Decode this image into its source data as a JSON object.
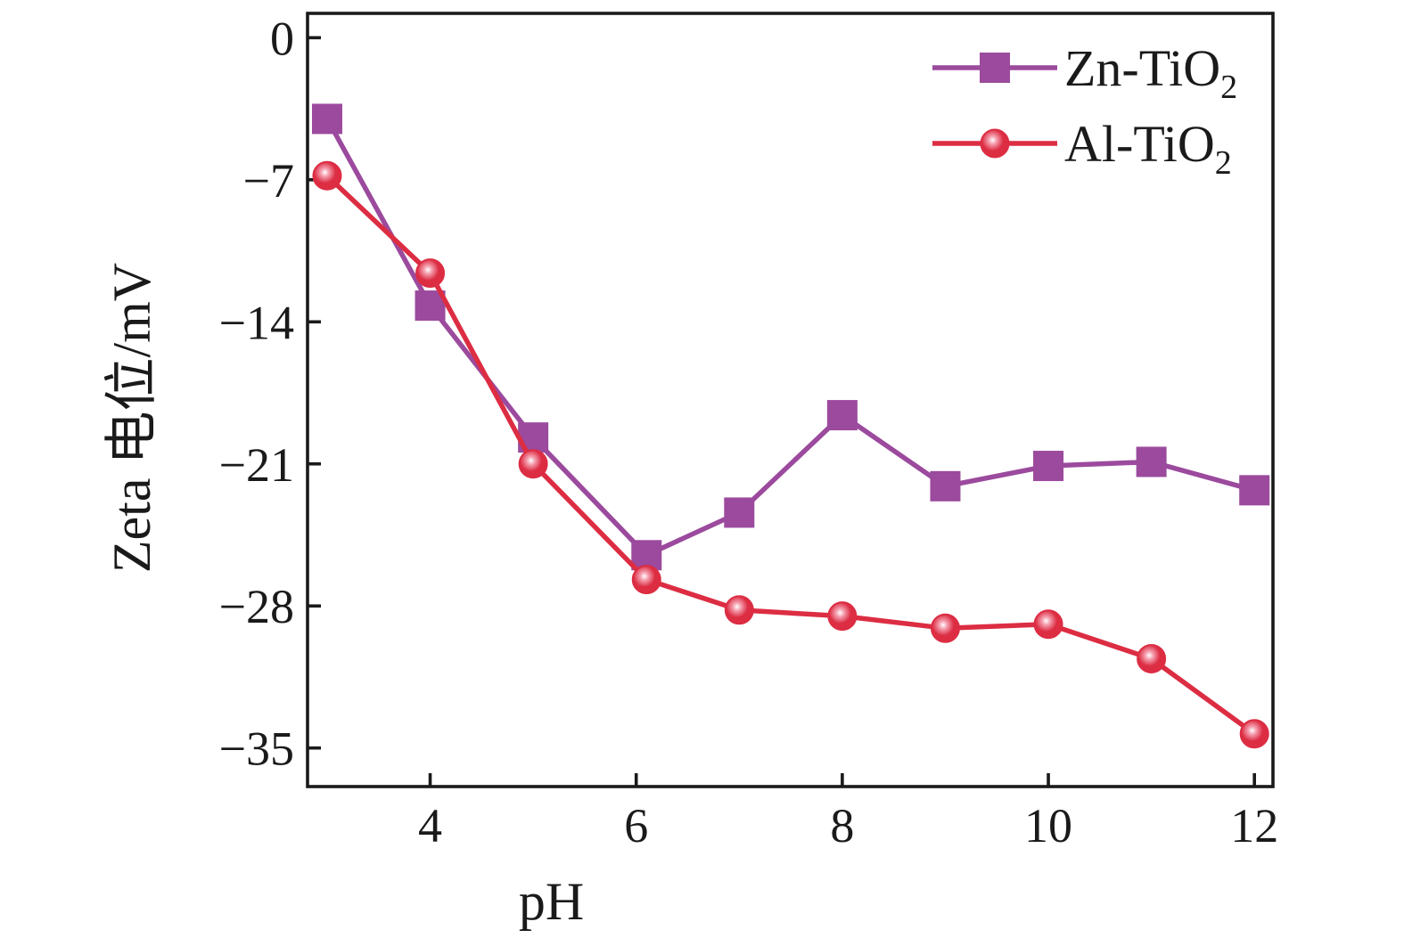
{
  "figure": {
    "background": "#ffffff",
    "text_color": "#1a1a1a",
    "frame_color": "#1a1a1a"
  },
  "chart_data": {
    "type": "line",
    "title": "",
    "xlabel": "pH",
    "ylabel": "Zeta 电位/mV",
    "grid": false,
    "legend_position": "top-right",
    "xlim": [
      2.81,
      12.18
    ],
    "ylim": [
      -36.9,
      1.2
    ],
    "x_ticks": {
      "values": [
        4,
        6,
        8,
        10,
        12
      ],
      "labels": [
        "4",
        "6",
        "8",
        "10",
        "12"
      ]
    },
    "y_ticks": {
      "values": [
        0,
        -7,
        -14,
        -21,
        -28,
        -35
      ],
      "labels": [
        "0",
        "−7",
        "−14",
        "−21",
        "−28",
        "−35"
      ]
    },
    "series": [
      {
        "name": "Zn-TiO2",
        "label_base": "Zn-TiO",
        "label_sub": "2",
        "color": "#9b4a9d",
        "marker": "square",
        "x": [
          3,
          4,
          5,
          6.1,
          7,
          8,
          9,
          10,
          11,
          12
        ],
        "y": [
          -4.0,
          -13.2,
          -19.7,
          -25.5,
          -23.4,
          -18.6,
          -22.1,
          -21.1,
          -20.9,
          -22.3
        ]
      },
      {
        "name": "Al-TiO2",
        "label_base": "Al-TiO",
        "label_sub": "2",
        "color": "#dc2d43",
        "marker": "ball",
        "x": [
          3,
          4,
          5,
          6.1,
          7,
          8,
          9,
          10,
          11,
          12
        ],
        "y": [
          -6.8,
          -11.6,
          -21.0,
          -26.7,
          -28.2,
          -28.5,
          -29.1,
          -28.9,
          -30.6,
          -34.3
        ]
      }
    ]
  }
}
